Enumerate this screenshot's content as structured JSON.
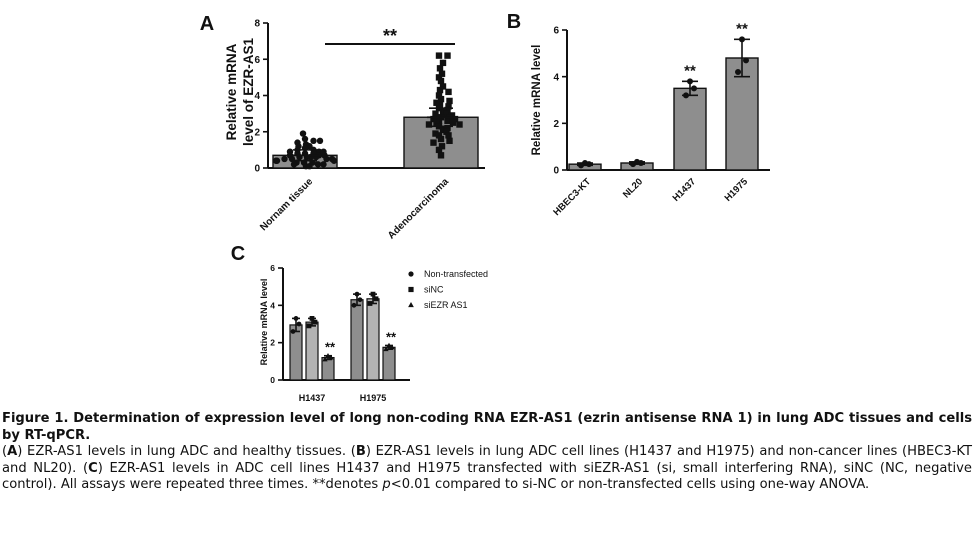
{
  "panels": [
    {
      "letter": "A",
      "type": "bar",
      "ylabel_line1": "Relative mRNA",
      "ylabel_line2": "level of  EZR-AS1",
      "ylim": [
        0,
        8
      ],
      "yticks": [
        "0",
        "2",
        "4",
        "6",
        "8"
      ],
      "categories": [
        "Nornam tissue",
        "Adenocarcinoma"
      ],
      "values": [
        0.7,
        2.8
      ],
      "errors": [
        0.3,
        0.5
      ],
      "significance": "**",
      "points": [
        [
          1.9,
          1.6,
          1.5,
          1.4,
          1.3,
          1.2,
          1.1,
          1.0,
          1.0,
          0.9,
          0.9,
          0.8,
          0.8,
          0.8,
          0.7,
          0.7,
          0.7,
          0.6,
          0.6,
          0.6,
          0.6,
          0.5,
          0.5,
          0.5,
          0.5,
          0.4,
          0.4,
          0.4,
          0.3,
          0.3,
          0.3,
          0.2,
          0.2,
          0.2,
          0.1,
          0.1,
          1.2,
          1.5,
          0.9
        ],
        [
          6.2,
          6.2,
          5.8,
          5.5,
          5.2,
          5.0,
          4.8,
          4.5,
          4.3,
          4.2,
          4.0,
          3.8,
          3.7,
          3.5,
          3.4,
          3.3,
          3.2,
          3.1,
          3.0,
          3.0,
          2.9,
          2.8,
          2.8,
          2.7,
          2.7,
          2.6,
          2.6,
          2.5,
          2.5,
          2.4,
          2.3,
          2.2,
          2.1,
          2.0,
          1.9,
          1.8,
          1.6,
          1.5,
          1.4,
          1.2,
          1.0,
          0.7,
          3.6,
          2.4,
          1.8
        ]
      ]
    },
    {
      "letter": "B",
      "type": "bar",
      "ylabel": "Relative mRNA level",
      "ylim": [
        0,
        6
      ],
      "yticks": [
        "0",
        "2",
        "4",
        "6"
      ],
      "categories": [
        "HBEC3-KT",
        "NL20",
        "H1437",
        "H1975"
      ],
      "values": [
        0.25,
        0.3,
        3.5,
        4.8
      ],
      "errors": [
        0.05,
        0.05,
        0.3,
        0.8
      ],
      "significance": [
        "",
        "",
        "**",
        "**"
      ],
      "points": [
        [
          0.2,
          0.25,
          0.3
        ],
        [
          0.25,
          0.3,
          0.35
        ],
        [
          3.2,
          3.5,
          3.8
        ],
        [
          4.2,
          4.7,
          5.6
        ]
      ]
    },
    {
      "letter": "C",
      "type": "grouped-bar",
      "ylabel": "Relative mRNA level",
      "ylim": [
        0,
        6
      ],
      "yticks": [
        "0",
        "2",
        "4",
        "6"
      ],
      "categories": [
        "H1437",
        "H1975"
      ],
      "series": [
        {
          "name": "Non-transfected",
          "values": [
            2.95,
            4.3
          ],
          "errors": [
            0.35,
            0.3
          ],
          "points": [
            [
              2.6,
              3.0,
              3.3
            ],
            [
              4.0,
              4.3,
              4.6
            ]
          ],
          "significance": [
            "",
            ""
          ]
        },
        {
          "name": "siNC",
          "values": [
            3.1,
            4.35
          ],
          "errors": [
            0.2,
            0.25
          ],
          "points": [
            [
              2.9,
              3.1,
              3.3
            ],
            [
              4.1,
              4.35,
              4.6
            ]
          ],
          "significance": [
            "",
            ""
          ]
        },
        {
          "name": "siEZR AS1",
          "values": [
            1.2,
            1.75
          ],
          "errors": [
            0.1,
            0.1
          ],
          "points": [
            [
              1.1,
              1.2,
              1.3
            ],
            [
              1.65,
              1.75,
              1.85
            ]
          ],
          "significance": [
            "**",
            "**"
          ]
        }
      ],
      "colors": [
        "#8e8e8e",
        "#b3b3b3",
        "#8e8e8e"
      ]
    }
  ],
  "caption": {
    "title": "Figure 1. Determination of expression level of long non-coding RNA EZR-AS1 (ezrin antisense RNA 1) in lung ADC tissues and cells by RT-qPCR.",
    "body_parts": [
      {
        "t": "(",
        "b": false
      },
      {
        "t": "A",
        "b": true
      },
      {
        "t": ") EZR-AS1 levels in lung ADC and healthy tissues. (",
        "b": false
      },
      {
        "t": "B",
        "b": true
      },
      {
        "t": ") EZR-AS1 levels in lung ADC cell lines (H1437 and H1975) and non-cancer lines (HBEC3-KT and NL20). (",
        "b": false
      },
      {
        "t": "C",
        "b": true
      },
      {
        "t": ") EZR-AS1 levels in ADC cell lines H1437 and H1975 transfected with siEZR-AS1 (si, small interfering RNA), siNC (NC, negative control). All assays were repeated three times. **denotes ",
        "b": false
      },
      {
        "t": "p",
        "i": true
      },
      {
        "t": "<0.01 compared to si-NC or non-transfected cells using one-way ANOVA.",
        "b": false
      }
    ]
  },
  "colors": {
    "bar_dark": "#8e8e8e",
    "bar_light": "#b3b3b3",
    "ink": "#111111"
  }
}
